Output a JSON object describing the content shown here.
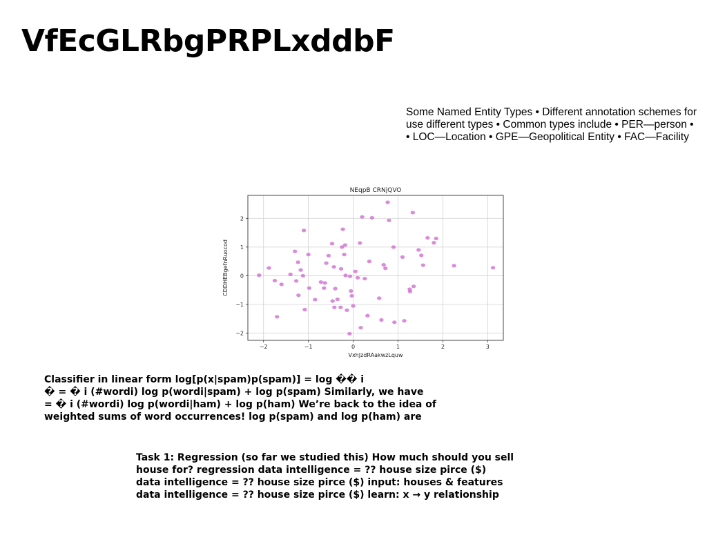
{
  "title": "VfEcGLRbgPRPLxddbF",
  "ner_text": {
    "lines": [
      "Some Named Entity Types • Different annotation schemes for",
      "use different types • Common types include • PER—person •",
      "• LOC—Location • GPE—Geopolitical Entity • FAC—Facility"
    ]
  },
  "chart_data": {
    "type": "scatter",
    "title": "NEqpB CRNjQVO",
    "xlabel": "VxhJzdRAakwzLquw",
    "ylabel": "CDDHEBgefnRuocod",
    "xlim": [
      -2.35,
      3.35
    ],
    "ylim": [
      -2.25,
      2.8
    ],
    "xticks": [
      -2,
      -1,
      0,
      1,
      2,
      3
    ],
    "yticks": [
      -2,
      -1,
      0,
      1,
      2
    ],
    "xtick_labels": [
      "−2",
      "−1",
      "0",
      "1",
      "2",
      "3"
    ],
    "ytick_labels": [
      "−2",
      "−1",
      "0",
      "1",
      "2"
    ],
    "grid": true,
    "point_color": "#cc66cc",
    "points": [
      [
        -2.1,
        0.02
      ],
      [
        -1.88,
        0.27
      ],
      [
        -1.75,
        -0.17
      ],
      [
        -1.7,
        -1.43
      ],
      [
        -1.6,
        -0.3
      ],
      [
        -1.4,
        0.05
      ],
      [
        -1.3,
        0.85
      ],
      [
        -1.27,
        -0.18
      ],
      [
        -1.23,
        0.47
      ],
      [
        -1.22,
        -0.68
      ],
      [
        -1.17,
        0.2
      ],
      [
        -1.12,
        0.0
      ],
      [
        -1.1,
        1.58
      ],
      [
        -1.08,
        -1.18
      ],
      [
        -1.0,
        0.74
      ],
      [
        -0.98,
        -0.43
      ],
      [
        -0.85,
        -0.83
      ],
      [
        -0.72,
        -0.22
      ],
      [
        -0.65,
        -0.43
      ],
      [
        -0.63,
        -0.25
      ],
      [
        -0.6,
        0.44
      ],
      [
        -0.55,
        0.7
      ],
      [
        -0.47,
        1.12
      ],
      [
        -0.46,
        -0.88
      ],
      [
        -0.43,
        0.31
      ],
      [
        -0.42,
        -1.1
      ],
      [
        -0.4,
        -0.45
      ],
      [
        -0.35,
        -0.82
      ],
      [
        -0.28,
        -1.1
      ],
      [
        -0.27,
        0.24
      ],
      [
        -0.25,
        1.0
      ],
      [
        -0.23,
        1.62
      ],
      [
        -0.2,
        0.74
      ],
      [
        -0.18,
        1.07
      ],
      [
        -0.17,
        0.01
      ],
      [
        -0.14,
        -1.2
      ],
      [
        -0.08,
        -2.02
      ],
      [
        -0.07,
        -0.02
      ],
      [
        -0.05,
        -0.53
      ],
      [
        -0.03,
        -0.7
      ],
      [
        0.0,
        -1.05
      ],
      [
        0.05,
        0.15
      ],
      [
        0.1,
        -0.07
      ],
      [
        0.15,
        1.14
      ],
      [
        0.17,
        -1.81
      ],
      [
        0.2,
        2.05
      ],
      [
        0.26,
        -0.1
      ],
      [
        0.32,
        -1.39
      ],
      [
        0.36,
        0.5
      ],
      [
        0.42,
        2.02
      ],
      [
        0.58,
        -0.78
      ],
      [
        0.63,
        -1.54
      ],
      [
        0.68,
        0.38
      ],
      [
        0.72,
        0.26
      ],
      [
        0.77,
        2.56
      ],
      [
        0.8,
        1.93
      ],
      [
        0.9,
        1.0
      ],
      [
        0.92,
        -1.62
      ],
      [
        1.1,
        0.65
      ],
      [
        1.14,
        -1.57
      ],
      [
        1.26,
        -0.47
      ],
      [
        1.27,
        -0.55
      ],
      [
        1.33,
        2.2
      ],
      [
        1.35,
        -0.37
      ],
      [
        1.46,
        0.9
      ],
      [
        1.52,
        0.71
      ],
      [
        1.56,
        0.37
      ],
      [
        1.66,
        1.32
      ],
      [
        1.8,
        1.15
      ],
      [
        1.85,
        1.3
      ],
      [
        2.25,
        0.35
      ],
      [
        3.12,
        0.28
      ]
    ]
  },
  "paragraph1": {
    "lines": [
      "Classifier in linear form log[p(x|spam)p(spam)] = log �� i",
      "� = � i (#wordi) log p(wordi|spam) + log p(spam) Similarly, we have",
      "= � i (#wordi) log p(wordi|ham) + log p(ham) We’re back to the idea of",
      "weighted sums of word occurrences! log p(spam) and log p(ham) are"
    ]
  },
  "paragraph2": {
    "lines": [
      "Task 1: Regression (so far we studied this) How much should you sell",
      "house for? regression data intelligence = ?? house size pirce ($)",
      "data intelligence = ?? house size pirce ($) input: houses & features",
      "data intelligence = ?? house size pirce ($) learn: x → y relationship"
    ]
  }
}
